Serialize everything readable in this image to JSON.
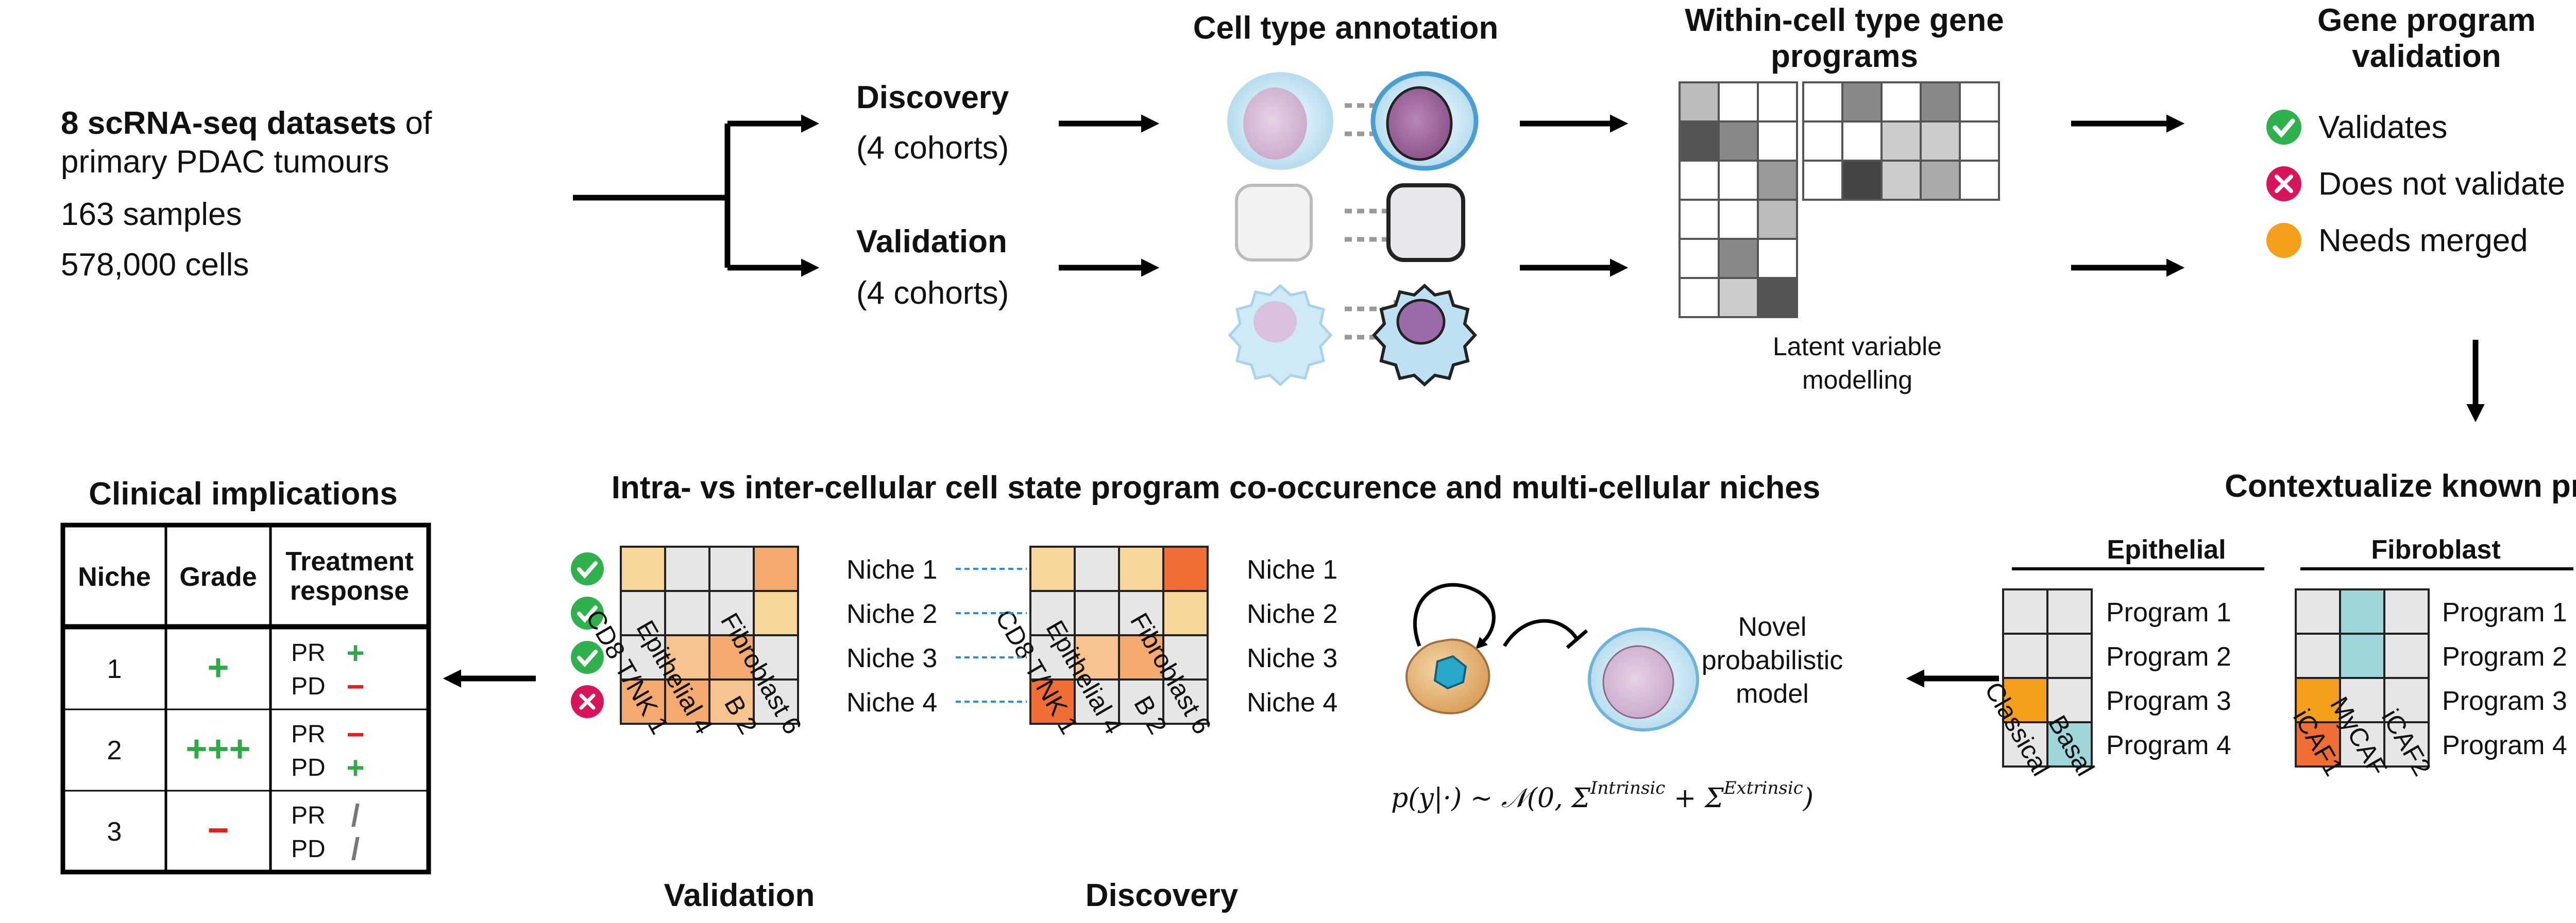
{
  "colors": {
    "grey": "#e6e6e6",
    "pale_peach": "#f9d79b",
    "peach": "#f7c48f",
    "light_orange": "#f4a96f",
    "orange": "#f59f1d",
    "dark_orange": "#f06e35",
    "teal": "#9fd6d9",
    "check_green": "#2fb14d",
    "cross_red": "#d8145b",
    "merge_orange": "#f59f1d",
    "plus_green": "#2fa84a",
    "minus_red": "#e32119"
  },
  "datasets": {
    "line1_bold": "8 scRNA-seq datasets",
    "line1_rest": " of",
    "line2": "primary PDAC tumours",
    "samples": "163 samples",
    "cells": "578,000 cells"
  },
  "split": {
    "discovery": "Discovery",
    "discovery_cohorts": "(4 cohorts)",
    "validation": "Validation",
    "validation_cohorts": "(4 cohorts)"
  },
  "annotation": {
    "title": "Cell type annotation"
  },
  "gene_programs": {
    "title_line1": "Within-cell type gene",
    "title_line2": "programs",
    "caption_line1": "Latent variable",
    "caption_line2": "modelling"
  },
  "validation_box": {
    "title_line1": "Gene program",
    "title_line2": "validation",
    "items": [
      {
        "icon": "check-icon",
        "label": "Validates"
      },
      {
        "icon": "cross-icon",
        "label": "Does not validate"
      },
      {
        "icon": "dot-icon",
        "label": "Needs merged"
      }
    ]
  },
  "contextualize": {
    "title": "Contextualize known programs",
    "epithelial": {
      "header": "Epithelial",
      "columns": [
        "Classical",
        "Basal"
      ],
      "programs": [
        "Program 1",
        "Program 2",
        "Program 3",
        "Program 4"
      ],
      "cells": [
        [
          "grey",
          "grey"
        ],
        [
          "grey",
          "grey"
        ],
        [
          "orange",
          "grey"
        ],
        [
          "grey",
          "teal"
        ]
      ]
    },
    "fibroblast": {
      "header": "Fibroblast",
      "columns": [
        "iCAF1",
        "MyCAF",
        "iCAF2"
      ],
      "programs": [
        "Program 1",
        "Program 2",
        "Program 3",
        "Program 4"
      ],
      "cells": [
        [
          "grey",
          "teal",
          "grey"
        ],
        [
          "grey",
          "teal",
          "grey"
        ],
        [
          "orange",
          "grey",
          "grey"
        ],
        [
          "dark_orange",
          "grey",
          "grey"
        ]
      ]
    }
  },
  "model": {
    "label_line1": "Novel",
    "label_line2": "probabilistic",
    "label_line3": "model",
    "formula_lhs": "p(y|·) ∼ 𝒩(0, Σ",
    "formula_sup1": "Intrinsic",
    "formula_mid": " + Σ",
    "formula_sup2": "Extrinsic",
    "formula_end": ")"
  },
  "niches": {
    "title": "Intra- vs inter-cellular cell state program co-occurence and multi-cellular niches",
    "columns": [
      "CD8 T/NK 1",
      "Epithelial 4",
      "B 2",
      "Fibroblast 6"
    ],
    "rows": [
      "Niche 1",
      "Niche 2",
      "Niche 3",
      "Niche 4"
    ],
    "status": [
      "check-icon",
      "check-icon",
      "check-icon",
      "cross-icon"
    ],
    "validation": {
      "label": "Validation",
      "cells": [
        [
          "pale_peach",
          "grey",
          "grey",
          "light_orange"
        ],
        [
          "grey",
          "grey",
          "grey",
          "pale_peach"
        ],
        [
          "grey",
          "peach",
          "light_orange",
          "grey"
        ],
        [
          "light_orange",
          "light_orange",
          "peach",
          "grey"
        ]
      ]
    },
    "discovery": {
      "label": "Discovery",
      "cells": [
        [
          "pale_peach",
          "grey",
          "pale_peach",
          "dark_orange"
        ],
        [
          "grey",
          "grey",
          "grey",
          "pale_peach"
        ],
        [
          "grey",
          "peach",
          "light_orange",
          "grey"
        ],
        [
          "dark_orange",
          "grey",
          "grey",
          "grey"
        ]
      ]
    }
  },
  "clinical": {
    "title": "Clinical implications",
    "headers": {
      "niche": "Niche",
      "grade": "Grade",
      "treatment_line1": "Treatment",
      "treatment_line2": "response"
    },
    "rows": [
      {
        "niche": "1",
        "grade": "+",
        "grade_color": "plus_green",
        "pr": "PR",
        "pr_sym": "+",
        "pr_type": "plus",
        "pd": "PD",
        "pd_sym": "−",
        "pd_type": "minus"
      },
      {
        "niche": "2",
        "grade": "+++",
        "grade_color": "plus_green",
        "pr": "PR",
        "pr_sym": "−",
        "pr_type": "minus",
        "pd": "PD",
        "pd_sym": "+",
        "pd_type": "plus"
      },
      {
        "niche": "3",
        "grade": "−",
        "grade_color": "minus_red",
        "pr": "PR",
        "pr_sym": "/",
        "pr_type": "slash",
        "pd": "PD",
        "pd_sym": "/",
        "pd_type": "slash"
      }
    ]
  }
}
